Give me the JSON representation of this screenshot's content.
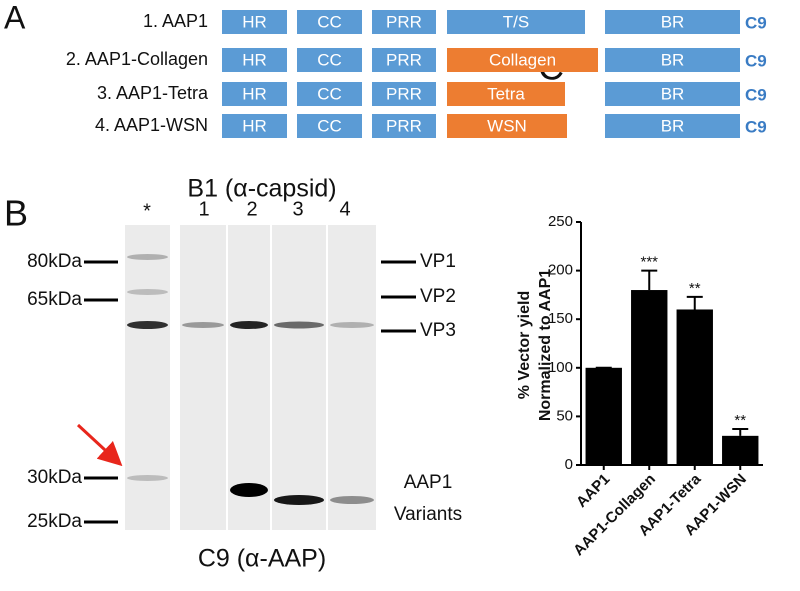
{
  "panel_a": {
    "label": "A",
    "rows": [
      {
        "label": "1. AAP1",
        "domains": [
          "HR",
          "CC",
          "PRR",
          "T/S",
          "BR"
        ],
        "tag": "C9",
        "variable_color": "#5b9bd5"
      },
      {
        "label": "2. AAP1-Collagen",
        "domains": [
          "HR",
          "CC",
          "PRR",
          "Collagen",
          "BR"
        ],
        "tag": "C9",
        "variable_color": "#ed7d31"
      },
      {
        "label": "3. AAP1-Tetra",
        "domains": [
          "HR",
          "CC",
          "PRR",
          "Tetra",
          "BR"
        ],
        "tag": "C9",
        "variable_color": "#ed7d31"
      },
      {
        "label": "4. AAP1-WSN",
        "domains": [
          "HR",
          "CC",
          "PRR",
          "WSN",
          "BR"
        ],
        "tag": "C9",
        "variable_color": "#ed7d31"
      }
    ],
    "domain_color": "#5b9bd5"
  },
  "panel_b": {
    "label": "B",
    "top_title": "B1 (α-capsid)",
    "bottom_title": "C9 (α-AAP)",
    "lanes": [
      "*",
      "1",
      "2",
      "3",
      "4"
    ],
    "markers": [
      "80kDa",
      "65kDa",
      "30kDa",
      "25kDa"
    ],
    "bands": [
      "VP1",
      "VP2",
      "VP3"
    ],
    "variants_label": [
      "AAP1",
      "Variants"
    ]
  },
  "chart_data": {
    "type": "bar",
    "panel_label": "C",
    "ylabel": [
      "% Vector yield",
      "Normalized to AAP1"
    ],
    "categories": [
      "AAP1",
      "AAP1-Collagen",
      "AAP1-Tetra",
      "AAP1-WSN"
    ],
    "values": [
      100,
      180,
      160,
      30
    ],
    "errors": [
      0,
      20,
      13,
      7
    ],
    "significance": [
      null,
      "***",
      "**",
      "**"
    ],
    "color": "#000000",
    "ylim": [
      0,
      250
    ],
    "yticks": [
      0,
      50,
      100,
      150,
      200,
      250
    ]
  }
}
